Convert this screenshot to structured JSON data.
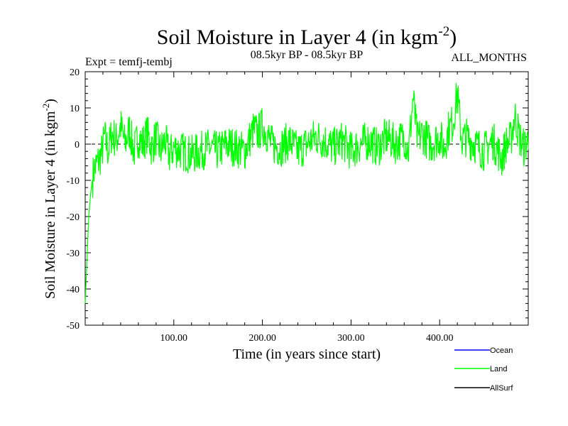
{
  "chart_data": {
    "type": "line",
    "title_main": "Soil Moisture in Layer 4 (in kgm",
    "title_sup": "-2",
    "title_close": ")",
    "subtitle": "08.5kyr BP - 08.5kyr BP",
    "experiment": "Expt = temfj-tembj",
    "months": "ALL_MONTHS",
    "xlabel": "Time (in years since start)",
    "ylabel_main": "Soil Moisture in Layer 4 (in kgm",
    "ylabel_sup": "-2",
    "ylabel_close": ")",
    "xlim": [
      0,
      500
    ],
    "ylim": [
      -50,
      20
    ],
    "xticks": [
      100,
      200,
      300,
      400
    ],
    "xtick_labels": [
      "100.00",
      "200.00",
      "300.00",
      "400.00"
    ],
    "yticks": [
      -50,
      -40,
      -30,
      -20,
      -10,
      0,
      10,
      20
    ],
    "ytick_labels": [
      "-50",
      "-40",
      "-30",
      "-20",
      "-10",
      "0",
      "10",
      "20"
    ],
    "zero_line": true,
    "legend": [
      {
        "name": "Ocean",
        "color": "#0000ff"
      },
      {
        "name": "Land",
        "color": "#00ff00"
      },
      {
        "name": "AllSurf",
        "color": "#000000"
      }
    ],
    "series": [
      {
        "name": "Land",
        "color": "#00ff00",
        "x": [
          0,
          2,
          4,
          6,
          8,
          10,
          14,
          18,
          22,
          26,
          30,
          35,
          40,
          45,
          50,
          55,
          60,
          65,
          70,
          75,
          80,
          85,
          90,
          95,
          100,
          110,
          120,
          130,
          140,
          150,
          160,
          170,
          180,
          185,
          190,
          195,
          200,
          205,
          210,
          220,
          230,
          240,
          250,
          260,
          270,
          280,
          290,
          300,
          310,
          320,
          330,
          340,
          350,
          360,
          365,
          370,
          375,
          380,
          390,
          400,
          405,
          410,
          415,
          420,
          425,
          430,
          440,
          450,
          460,
          470,
          475,
          480,
          485,
          490,
          495,
          500
        ],
        "values": [
          -44,
          -32,
          -20,
          -14,
          -10,
          -7,
          -5,
          -3,
          2,
          -2,
          3,
          1,
          5,
          0,
          4,
          -2,
          2,
          0,
          3,
          -1,
          2,
          -2,
          1,
          -3,
          -1,
          -2,
          -3,
          -2,
          -1,
          -2,
          0,
          -1,
          -2,
          1,
          4,
          3,
          5,
          3,
          0,
          -1,
          1,
          -2,
          0,
          2,
          1,
          -1,
          1,
          -2,
          0,
          1,
          -1,
          2,
          0,
          2,
          -2,
          13,
          1,
          3,
          0,
          2,
          -1,
          4,
          6,
          14,
          1,
          2,
          0,
          -2,
          1,
          -4,
          0,
          1,
          8,
          2,
          -1,
          1
        ]
      },
      {
        "name": "Ocean",
        "color": "#0000ff",
        "x": [],
        "values": []
      },
      {
        "name": "AllSurf",
        "color": "#000000",
        "x": [],
        "values": []
      }
    ]
  }
}
